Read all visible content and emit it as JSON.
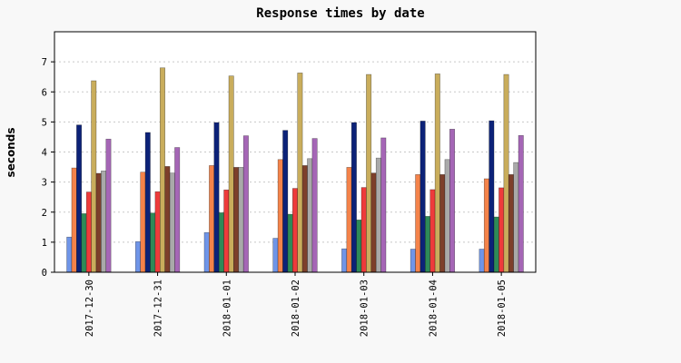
{
  "chart_data": {
    "type": "bar",
    "title": "Response times by date",
    "xlabel": "",
    "ylabel": "seconds",
    "ylim": [
      0,
      8
    ],
    "yticks": [
      0,
      1,
      2,
      3,
      4,
      5,
      6,
      7
    ],
    "grid": true,
    "legend": "none",
    "categories": [
      "2017-12-30",
      "2017-12-31",
      "2018-01-01",
      "2018-01-02",
      "2018-01-03",
      "2018-01-04",
      "2018-01-05"
    ],
    "series": [
      {
        "color": "#6f95e8",
        "values": [
          1.17,
          1.02,
          1.32,
          1.13,
          0.78,
          0.77,
          0.77
        ]
      },
      {
        "color": "#f4834a",
        "values": [
          3.47,
          3.33,
          3.55,
          3.75,
          3.49,
          3.25,
          3.11
        ]
      },
      {
        "color": "#0c2278",
        "values": [
          4.9,
          4.65,
          4.98,
          4.72,
          4.98,
          5.03,
          5.04
        ]
      },
      {
        "color": "#2e8a58",
        "values": [
          1.95,
          1.97,
          1.98,
          1.93,
          1.74,
          1.86,
          1.84
        ]
      },
      {
        "color": "#ee3b3b",
        "values": [
          2.67,
          2.68,
          2.74,
          2.79,
          2.82,
          2.75,
          2.81
        ]
      },
      {
        "color": "#c9ad5c",
        "values": [
          6.37,
          6.8,
          6.53,
          6.63,
          6.58,
          6.6,
          6.58
        ]
      },
      {
        "color": "#7d3f2b",
        "values": [
          3.29,
          3.52,
          3.49,
          3.55,
          3.3,
          3.25,
          3.25
        ]
      },
      {
        "color": "#a9a9a9",
        "values": [
          3.37,
          3.3,
          3.49,
          3.78,
          3.8,
          3.75,
          3.65
        ]
      },
      {
        "color": "#a566b6",
        "values": [
          4.43,
          4.15,
          4.54,
          4.45,
          4.47,
          4.76,
          4.55
        ]
      }
    ]
  }
}
